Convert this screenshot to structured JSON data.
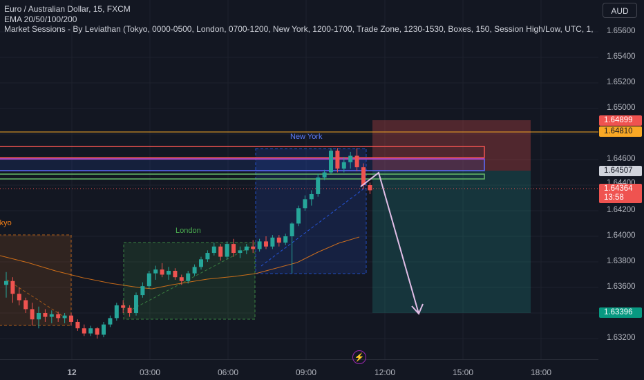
{
  "legend": {
    "symbol": "Euro / Australian Dollar, 15, FXCM",
    "ema": "EMA 20/50/100/200",
    "sessions": "Market Sessions - By Leviathan (Tokyo, 0000-0500, London, 0700-1200, New York, 1200-1700, Trade Zone, 1230-1530, Boxes, 150, Session High/Low, UTC, 1,"
  },
  "currency": "AUD",
  "price_ticks": [
    "1.65600",
    "1.65400",
    "1.65200",
    "1.65000",
    "1.64600",
    "1.64400",
    "1.64200",
    "1.64000",
    "1.63800",
    "1.63600",
    "1.63200"
  ],
  "price_badges": {
    "stop": "1.64899",
    "resistance": "1.64810",
    "entry": "1.64507",
    "last": "1.64364",
    "countdown": "13:58",
    "target": "1.63396"
  },
  "time_labels": [
    "12",
    "03:00",
    "06:00",
    "09:00",
    "12:00",
    "15:00",
    "18:00"
  ],
  "sessions": {
    "tokyo": "Tokyo",
    "london": "London",
    "new_york": "New York"
  },
  "colors": {
    "background": "#131722",
    "up": "#26a69a",
    "down": "#ef5350",
    "resistance_line": "#f9a825",
    "tokyo": "#f57f17",
    "london": "#4caf50",
    "new_york": "#2962ff",
    "short_stop_zone": "#ef5350",
    "short_target_zone": "#26a69a",
    "arrow": "#e1bee7"
  },
  "chart_data": {
    "type": "candlestick",
    "symbol": "EURAUD",
    "timeframe": "15",
    "ylim": [
      1.631,
      1.658
    ],
    "candles": [
      {
        "o": 1.6362,
        "h": 1.6372,
        "l": 1.6352,
        "c": 1.6365
      },
      {
        "o": 1.6365,
        "h": 1.6368,
        "l": 1.6348,
        "c": 1.6355
      },
      {
        "o": 1.6355,
        "h": 1.636,
        "l": 1.6346,
        "c": 1.635
      },
      {
        "o": 1.635,
        "h": 1.6352,
        "l": 1.634,
        "c": 1.6343
      },
      {
        "o": 1.6343,
        "h": 1.6348,
        "l": 1.633,
        "c": 1.6335
      },
      {
        "o": 1.6335,
        "h": 1.6345,
        "l": 1.6328,
        "c": 1.634
      },
      {
        "o": 1.634,
        "h": 1.6343,
        "l": 1.6333,
        "c": 1.6337
      },
      {
        "o": 1.6337,
        "h": 1.6342,
        "l": 1.6332,
        "c": 1.6339
      },
      {
        "o": 1.6339,
        "h": 1.6341,
        "l": 1.6333,
        "c": 1.6336
      },
      {
        "o": 1.6336,
        "h": 1.634,
        "l": 1.6332,
        "c": 1.6338
      },
      {
        "o": 1.6338,
        "h": 1.634,
        "l": 1.633,
        "c": 1.6333
      },
      {
        "o": 1.6333,
        "h": 1.6335,
        "l": 1.6326,
        "c": 1.6328
      },
      {
        "o": 1.6328,
        "h": 1.6331,
        "l": 1.6322,
        "c": 1.6324
      },
      {
        "o": 1.6324,
        "h": 1.633,
        "l": 1.6322,
        "c": 1.6328
      },
      {
        "o": 1.6328,
        "h": 1.6329,
        "l": 1.632,
        "c": 1.6323
      },
      {
        "o": 1.6323,
        "h": 1.6333,
        "l": 1.6321,
        "c": 1.6331
      },
      {
        "o": 1.6331,
        "h": 1.6338,
        "l": 1.6329,
        "c": 1.6336
      },
      {
        "o": 1.6336,
        "h": 1.6348,
        "l": 1.6334,
        "c": 1.6346
      },
      {
        "o": 1.6346,
        "h": 1.635,
        "l": 1.634,
        "c": 1.6344
      },
      {
        "o": 1.6344,
        "h": 1.6346,
        "l": 1.6337,
        "c": 1.634
      },
      {
        "o": 1.634,
        "h": 1.6356,
        "l": 1.6338,
        "c": 1.6354
      },
      {
        "o": 1.6354,
        "h": 1.6364,
        "l": 1.6352,
        "c": 1.6361
      },
      {
        "o": 1.6361,
        "h": 1.6373,
        "l": 1.6359,
        "c": 1.6371
      },
      {
        "o": 1.6371,
        "h": 1.6377,
        "l": 1.6366,
        "c": 1.6374
      },
      {
        "o": 1.6374,
        "h": 1.6379,
        "l": 1.6368,
        "c": 1.637
      },
      {
        "o": 1.637,
        "h": 1.6376,
        "l": 1.6366,
        "c": 1.6373
      },
      {
        "o": 1.6373,
        "h": 1.6375,
        "l": 1.6366,
        "c": 1.6368
      },
      {
        "o": 1.6368,
        "h": 1.637,
        "l": 1.6362,
        "c": 1.6365
      },
      {
        "o": 1.6365,
        "h": 1.6373,
        "l": 1.6363,
        "c": 1.6371
      },
      {
        "o": 1.6371,
        "h": 1.6378,
        "l": 1.6369,
        "c": 1.6376
      },
      {
        "o": 1.6376,
        "h": 1.6384,
        "l": 1.6374,
        "c": 1.6382
      },
      {
        "o": 1.6382,
        "h": 1.6389,
        "l": 1.638,
        "c": 1.6387
      },
      {
        "o": 1.6387,
        "h": 1.6395,
        "l": 1.6385,
        "c": 1.6392
      },
      {
        "o": 1.6392,
        "h": 1.6394,
        "l": 1.6381,
        "c": 1.6384
      },
      {
        "o": 1.6384,
        "h": 1.6396,
        "l": 1.6382,
        "c": 1.6394
      },
      {
        "o": 1.6394,
        "h": 1.6398,
        "l": 1.6384,
        "c": 1.6387
      },
      {
        "o": 1.6387,
        "h": 1.6392,
        "l": 1.6383,
        "c": 1.6389
      },
      {
        "o": 1.6389,
        "h": 1.6394,
        "l": 1.6386,
        "c": 1.6392
      },
      {
        "o": 1.6392,
        "h": 1.6397,
        "l": 1.6387,
        "c": 1.639
      },
      {
        "o": 1.639,
        "h": 1.6398,
        "l": 1.6388,
        "c": 1.6396
      },
      {
        "o": 1.6396,
        "h": 1.64,
        "l": 1.639,
        "c": 1.6392
      },
      {
        "o": 1.6392,
        "h": 1.6401,
        "l": 1.639,
        "c": 1.6399
      },
      {
        "o": 1.6399,
        "h": 1.6401,
        "l": 1.6392,
        "c": 1.6395
      },
      {
        "o": 1.6395,
        "h": 1.6402,
        "l": 1.6393,
        "c": 1.64
      },
      {
        "o": 1.64,
        "h": 1.6411,
        "l": 1.6371,
        "c": 1.641
      },
      {
        "o": 1.641,
        "h": 1.6424,
        "l": 1.6408,
        "c": 1.6422
      },
      {
        "o": 1.6422,
        "h": 1.6432,
        "l": 1.642,
        "c": 1.6429
      },
      {
        "o": 1.6429,
        "h": 1.6436,
        "l": 1.6424,
        "c": 1.6433
      },
      {
        "o": 1.6433,
        "h": 1.6449,
        "l": 1.6431,
        "c": 1.6446
      },
      {
        "o": 1.6446,
        "h": 1.6452,
        "l": 1.6444,
        "c": 1.645
      },
      {
        "o": 1.645,
        "h": 1.6469,
        "l": 1.6449,
        "c": 1.6467
      },
      {
        "o": 1.6467,
        "h": 1.6469,
        "l": 1.645,
        "c": 1.6453
      },
      {
        "o": 1.6453,
        "h": 1.6462,
        "l": 1.645,
        "c": 1.6458
      },
      {
        "o": 1.6458,
        "h": 1.6466,
        "l": 1.6453,
        "c": 1.6463
      },
      {
        "o": 1.6463,
        "h": 1.6469,
        "l": 1.6451,
        "c": 1.6454
      },
      {
        "o": 1.6454,
        "h": 1.6457,
        "l": 1.6437,
        "c": 1.644
      },
      {
        "o": 1.644,
        "h": 1.6442,
        "l": 1.6433,
        "c": 1.6436
      }
    ]
  }
}
